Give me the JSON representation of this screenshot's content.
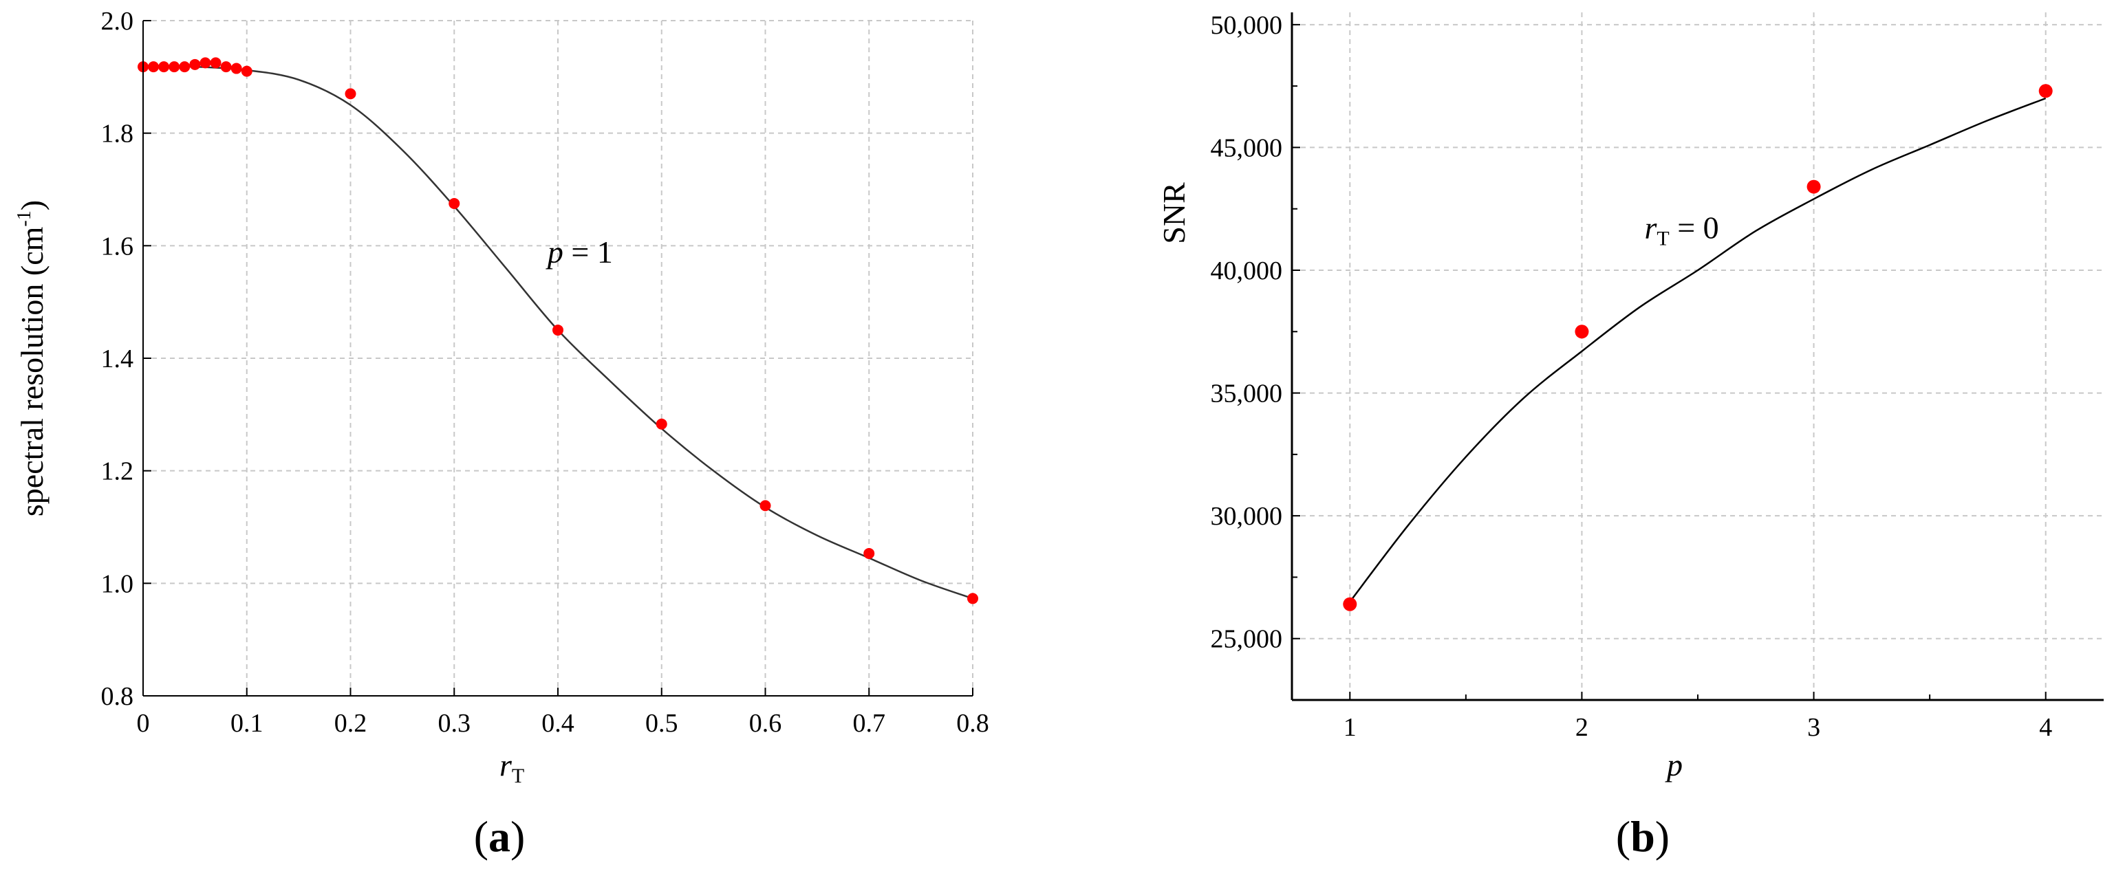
{
  "chart_data": [
    {
      "panel_label_open": "(",
      "panel_label_letter": "a",
      "panel_label_close": ")",
      "type": "scatter",
      "ylabel": "spectral  resolution (cm",
      "ylabel_sup": "-1",
      "ylabel_close": ")",
      "xlabel": "r",
      "xlabel_sub": "T",
      "xlim": [
        0,
        0.8
      ],
      "ylim": [
        0.8,
        2.0
      ],
      "xticks": [
        "0",
        "0.1",
        "0.2",
        "0.3",
        "0.4",
        "0.5",
        "0.6",
        "0.7",
        "0.8"
      ],
      "xtick_values": [
        0,
        0.1,
        0.2,
        0.3,
        0.4,
        0.5,
        0.6,
        0.7,
        0.8
      ],
      "yticks": [
        "0.8",
        "1.0",
        "1.2",
        "1.4",
        "1.6",
        "1.8",
        "2.0"
      ],
      "ytick_values": [
        0.8,
        1.0,
        1.2,
        1.4,
        1.6,
        1.8,
        2.0
      ],
      "grid": true,
      "annotation_var": "p",
      "annotation_rest": " = 1",
      "annotation_at": [
        0.39,
        1.57
      ],
      "points": {
        "x": [
          0,
          0.01,
          0.02,
          0.03,
          0.04,
          0.05,
          0.06,
          0.07,
          0.08,
          0.09,
          0.1,
          0.2,
          0.3,
          0.4,
          0.5,
          0.6,
          0.7,
          0.8
        ],
        "y": [
          1.918,
          1.918,
          1.918,
          1.918,
          1.918,
          1.922,
          1.925,
          1.925,
          1.918,
          1.915,
          1.91,
          1.87,
          1.675,
          1.45,
          1.283,
          1.138,
          1.053,
          0.973
        ]
      },
      "fit_curve": {
        "x": [
          0,
          0.05,
          0.1,
          0.15,
          0.2,
          0.25,
          0.3,
          0.35,
          0.4,
          0.45,
          0.5,
          0.55,
          0.6,
          0.65,
          0.7,
          0.75,
          0.8
        ],
        "y": [
          1.92,
          1.918,
          1.912,
          1.895,
          1.85,
          1.77,
          1.67,
          1.56,
          1.45,
          1.36,
          1.275,
          1.2,
          1.135,
          1.085,
          1.045,
          1.005,
          0.973
        ]
      },
      "point_color": "#ff0000",
      "curve_color": "#333333"
    },
    {
      "panel_label_open": "(",
      "panel_label_letter": "b",
      "panel_label_close": ")",
      "type": "scatter",
      "ylabel": "SNR",
      "xlabel": "p",
      "xlim": [
        0.75,
        4.25
      ],
      "ylim": [
        22500,
        50500
      ],
      "xticks": [
        "1",
        "2",
        "3",
        "4"
      ],
      "xtick_values": [
        1,
        2,
        3,
        4
      ],
      "yticks": [
        "25,000",
        "30,000",
        "35,000",
        "40,000",
        "45,000",
        "50,000"
      ],
      "ytick_values": [
        25000,
        30000,
        35000,
        40000,
        45000,
        50000
      ],
      "grid": true,
      "annotation_var": "r",
      "annotation_sub": "T",
      "annotation_rest": " = 0",
      "annotation_at": [
        2.27,
        41300
      ],
      "points": {
        "x": [
          1,
          2,
          3,
          4
        ],
        "y": [
          26400,
          37500,
          43400,
          47300
        ]
      },
      "fit_curve": {
        "x": [
          1,
          1.25,
          1.5,
          1.75,
          2,
          2.25,
          2.5,
          2.75,
          3,
          3.25,
          3.5,
          3.75,
          4
        ],
        "y": [
          26500,
          29600,
          32400,
          34800,
          36700,
          38500,
          40000,
          41600,
          42900,
          44100,
          45100,
          46100,
          47000
        ]
      },
      "point_color": "#ff0000",
      "curve_color": "#000000"
    }
  ]
}
